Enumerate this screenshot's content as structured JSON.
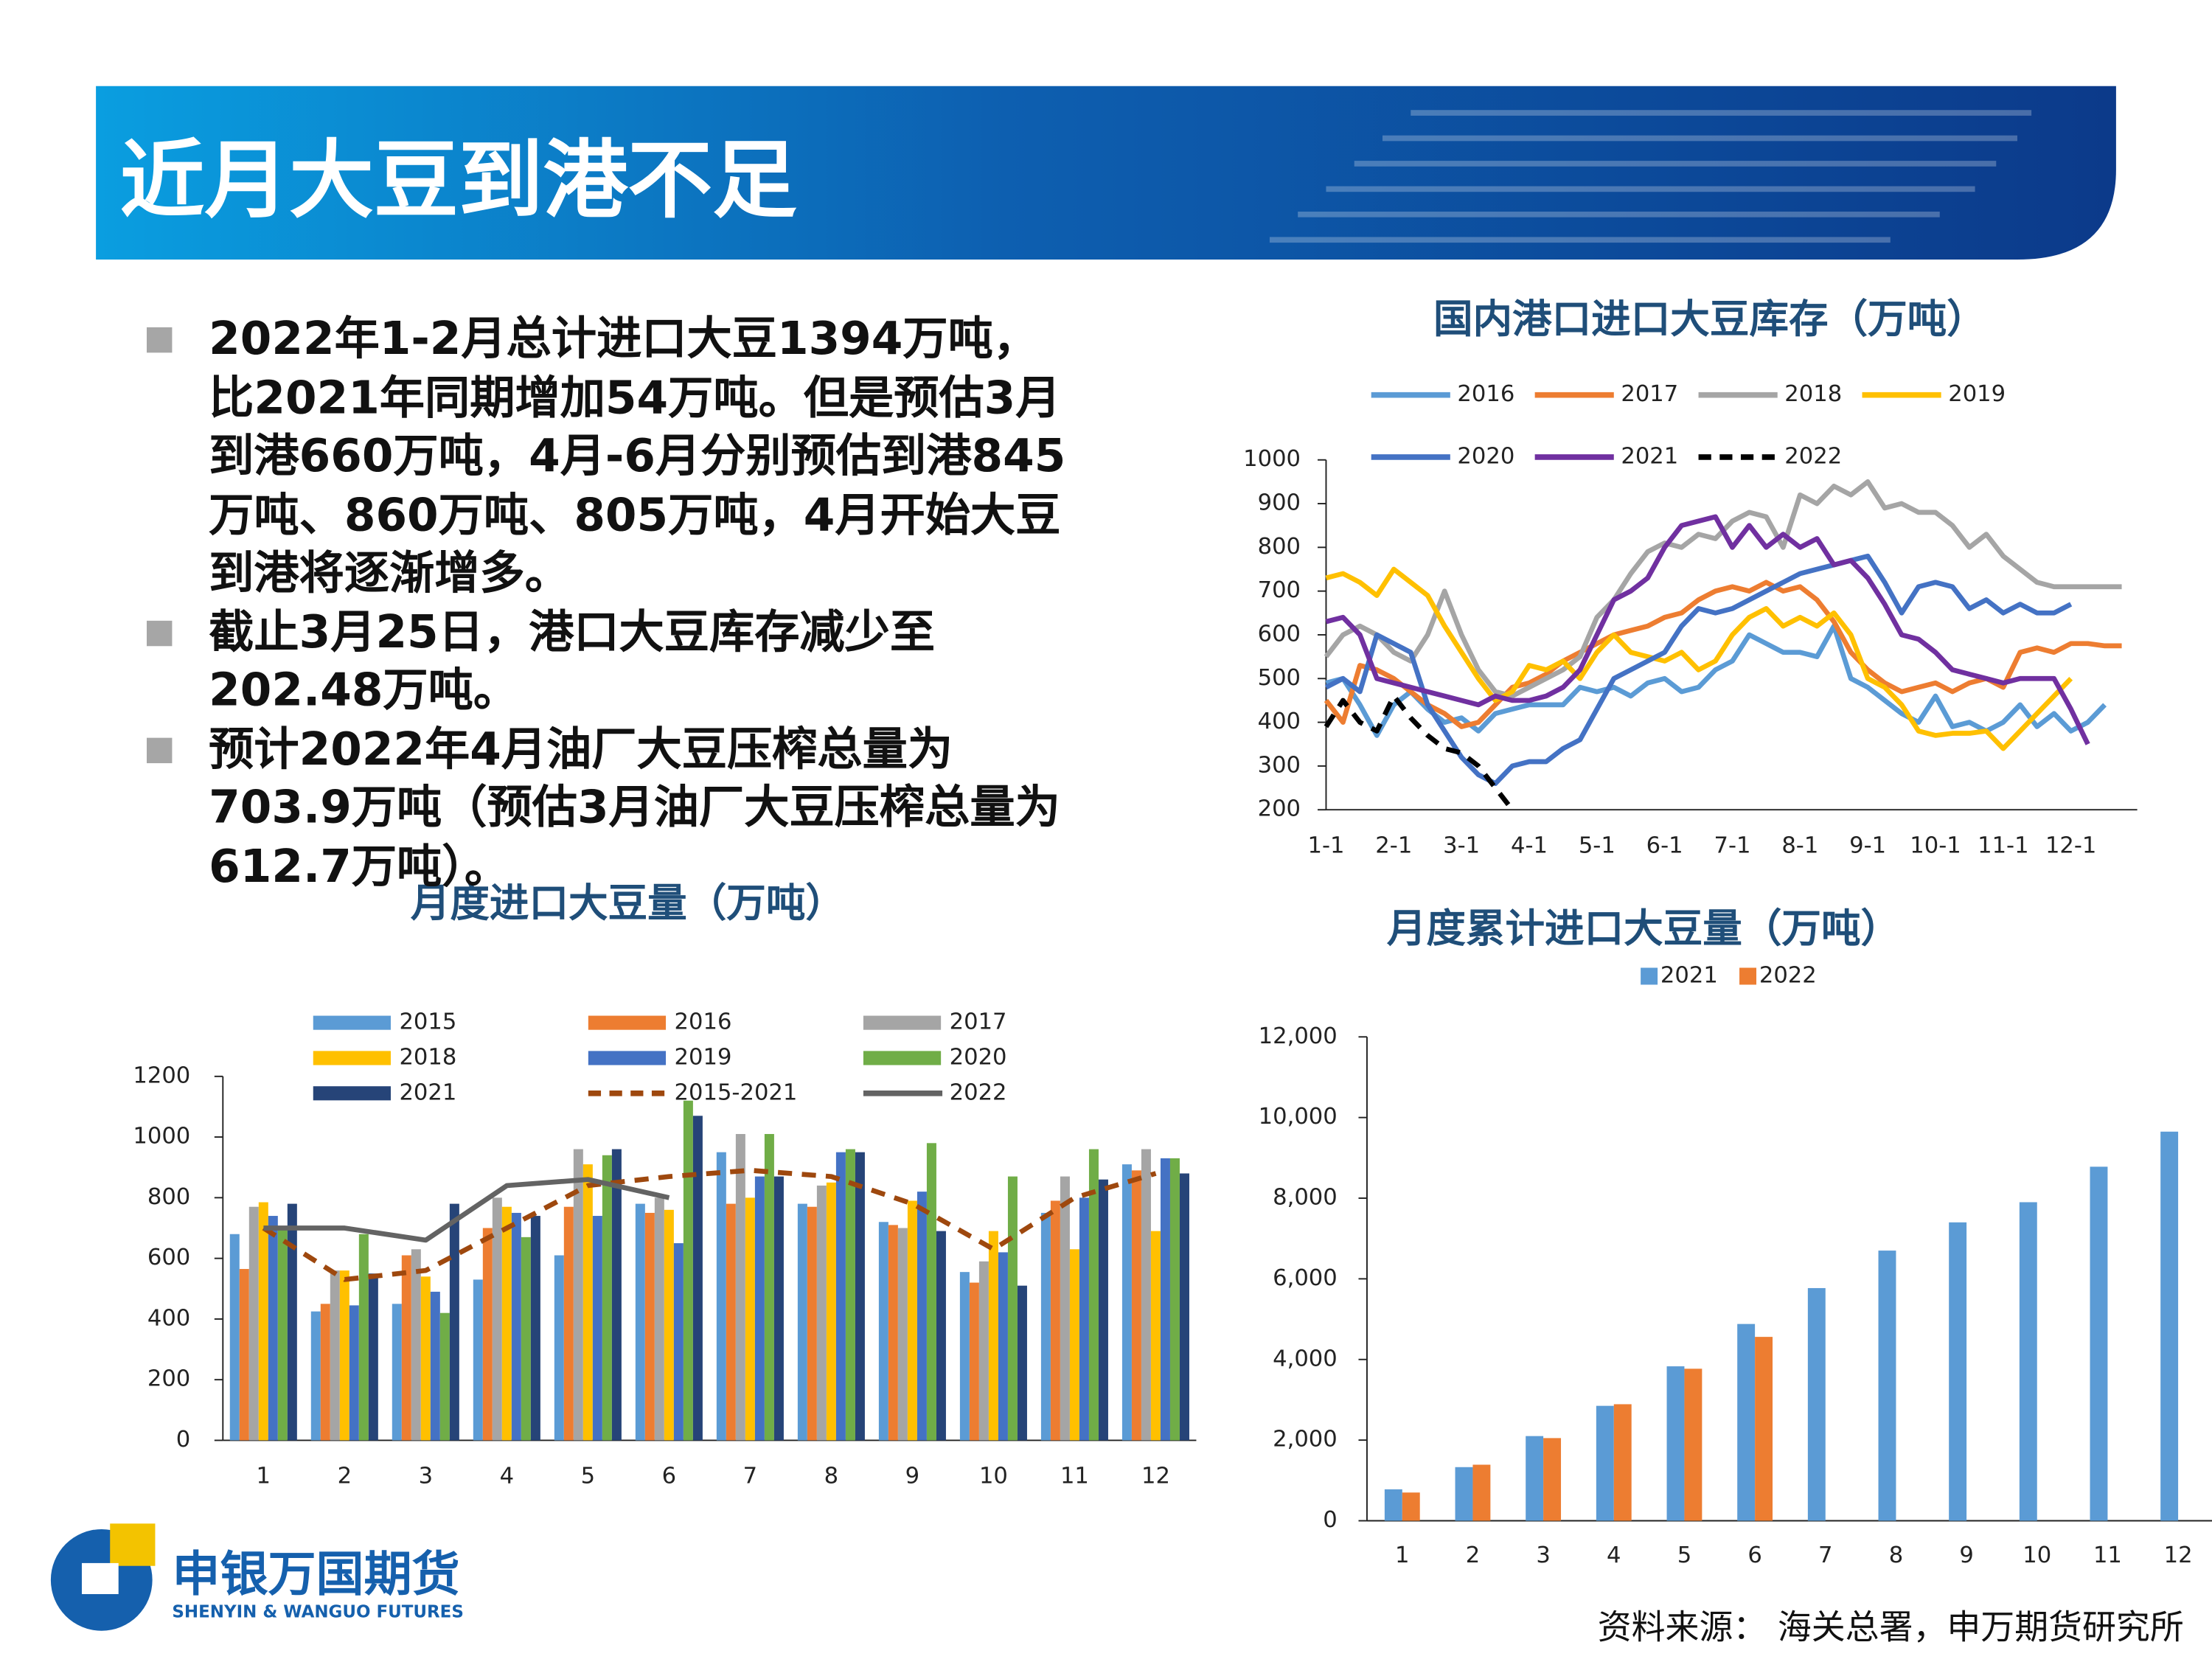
{
  "header": {
    "title": "近月大豆到港不足"
  },
  "bullets": [
    "2022年1-2月总计进口大豆1394万吨，比2021年同期增加54万吨。但是预估3月到港660万吨，4月-6月分别预估到港845万吨、860万吨、805万吨，4月开始大豆到港将逐渐增多。",
    "截止3月25日，港口大豆库存减少至202.48万吨。",
    "预计2022年4月油厂大豆压榨总量为703.9万吨（预估3月油厂大豆压榨总量为612.7万吨）。"
  ],
  "source": "资料来源： 海关总署，申万期货研究所",
  "logo": {
    "name": "申银万国期货",
    "english": "SHENYIN & WANGUO FUTURES"
  },
  "chart_data": [
    {
      "type": "line",
      "title": "国内港口进口大豆库存（万吨）",
      "categories": [
        "1-1",
        null,
        null,
        null,
        "2-1",
        null,
        null,
        null,
        "3-1",
        null,
        null,
        null,
        "4-1",
        null,
        null,
        null,
        "5-1",
        null,
        null,
        null,
        "6-1",
        null,
        null,
        null,
        "7-1",
        null,
        null,
        null,
        "8-1",
        null,
        null,
        null,
        "9-1",
        null,
        null,
        null,
        "10-1",
        null,
        null,
        null,
        "11-1",
        null,
        null,
        null,
        "12-1",
        null,
        null,
        null
      ],
      "ylim": [
        200,
        1000
      ],
      "yticks": [
        200,
        300,
        400,
        500,
        600,
        700,
        800,
        900,
        1000
      ],
      "series": [
        {
          "name": "2016",
          "color": "#5b9bd5",
          "values": [
            490,
            500,
            440,
            370,
            440,
            470,
            430,
            400,
            410,
            380,
            420,
            430,
            440,
            440,
            440,
            480,
            470,
            480,
            460,
            490,
            500,
            470,
            480,
            520,
            540,
            600,
            580,
            560,
            560,
            550,
            620,
            500,
            480,
            450,
            420,
            400,
            460,
            390,
            400,
            380,
            400,
            440,
            390,
            420,
            380,
            400,
            440,
            null
          ]
        },
        {
          "name": "2017",
          "color": "#ed7d31",
          "values": [
            450,
            400,
            530,
            520,
            500,
            470,
            440,
            420,
            390,
            400,
            440,
            480,
            490,
            510,
            540,
            560,
            580,
            600,
            610,
            620,
            640,
            650,
            680,
            700,
            710,
            700,
            720,
            700,
            710,
            680,
            630,
            560,
            520,
            490,
            470,
            480,
            490,
            470,
            490,
            500,
            480,
            560,
            570,
            560,
            580,
            580,
            575,
            575
          ]
        },
        {
          "name": "2018",
          "color": "#a5a5a5",
          "values": [
            550,
            600,
            620,
            600,
            560,
            540,
            600,
            700,
            600,
            520,
            470,
            460,
            480,
            500,
            520,
            550,
            640,
            680,
            740,
            790,
            810,
            800,
            830,
            820,
            860,
            880,
            870,
            800,
            920,
            900,
            940,
            920,
            950,
            890,
            900,
            880,
            880,
            850,
            800,
            830,
            780,
            750,
            720,
            710,
            710,
            710,
            710,
            710
          ]
        },
        {
          "name": "2019",
          "color": "#ffc000",
          "values": [
            730,
            740,
            720,
            690,
            750,
            720,
            690,
            620,
            560,
            500,
            450,
            470,
            530,
            520,
            540,
            500,
            560,
            600,
            560,
            550,
            540,
            560,
            520,
            540,
            600,
            640,
            660,
            620,
            640,
            620,
            650,
            600,
            500,
            480,
            440,
            380,
            370,
            375,
            375,
            380,
            340,
            380,
            420,
            460,
            500,
            null,
            null,
            null
          ]
        },
        {
          "name": "2020",
          "color": "#4472c4",
          "values": [
            480,
            500,
            470,
            600,
            580,
            560,
            440,
            380,
            320,
            280,
            260,
            300,
            310,
            310,
            340,
            360,
            430,
            500,
            520,
            540,
            560,
            620,
            660,
            650,
            660,
            680,
            700,
            720,
            740,
            750,
            760,
            770,
            780,
            720,
            650,
            710,
            720,
            710,
            660,
            680,
            650,
            670,
            650,
            650,
            670,
            null,
            null,
            null
          ]
        },
        {
          "name": "2021",
          "color": "#7030a0",
          "values": [
            630,
            640,
            600,
            500,
            490,
            480,
            470,
            460,
            450,
            440,
            460,
            450,
            450,
            460,
            480,
            520,
            600,
            680,
            700,
            730,
            800,
            850,
            860,
            870,
            800,
            850,
            800,
            830,
            800,
            820,
            760,
            770,
            730,
            670,
            600,
            590,
            560,
            520,
            510,
            500,
            490,
            500,
            500,
            500,
            430,
            350,
            null,
            null
          ]
        },
        {
          "name": "2022",
          "color": "#000000",
          "dashed": true,
          "values": [
            390,
            450,
            400,
            380,
            460,
            410,
            370,
            340,
            330,
            300,
            250,
            200,
            null,
            null,
            null,
            null,
            null,
            null,
            null,
            null,
            null,
            null,
            null,
            null,
            null,
            null,
            null,
            null,
            null,
            null,
            null,
            null,
            null,
            null,
            null,
            null,
            null,
            null,
            null,
            null,
            null,
            null,
            null,
            null,
            null,
            null,
            null,
            null
          ]
        }
      ]
    },
    {
      "type": "bar",
      "title": "月度进口大豆量（万吨）",
      "categories": [
        "1",
        "2",
        "3",
        "4",
        "5",
        "6",
        "7",
        "8",
        "9",
        "10",
        "11",
        "12"
      ],
      "ylim": [
        0,
        1200
      ],
      "yticks": [
        0,
        200,
        400,
        600,
        800,
        1000,
        1200
      ],
      "series": [
        {
          "name": "2015",
          "color": "#5b9bd5",
          "values": [
            680,
            425,
            450,
            530,
            610,
            780,
            950,
            780,
            720,
            555,
            750,
            910
          ]
        },
        {
          "name": "2016",
          "color": "#ed7d31",
          "values": [
            565,
            450,
            610,
            700,
            770,
            750,
            780,
            770,
            710,
            520,
            790,
            890
          ]
        },
        {
          "name": "2017",
          "color": "#a5a5a5",
          "values": [
            770,
            560,
            630,
            800,
            960,
            800,
            1010,
            840,
            700,
            590,
            870,
            960
          ]
        },
        {
          "name": "2018",
          "color": "#ffc000",
          "values": [
            785,
            560,
            540,
            770,
            910,
            760,
            800,
            850,
            790,
            690,
            630,
            690
          ]
        },
        {
          "name": "2019",
          "color": "#4472c4",
          "values": [
            740,
            445,
            490,
            750,
            740,
            650,
            870,
            950,
            820,
            620,
            800,
            930
          ]
        },
        {
          "name": "2020",
          "color": "#70ad47",
          "values": [
            700,
            680,
            420,
            670,
            940,
            1120,
            1010,
            960,
            980,
            870,
            960,
            930
          ]
        },
        {
          "name": "2021",
          "color": "#264478",
          "values": [
            780,
            550,
            780,
            740,
            960,
            1070,
            870,
            950,
            690,
            510,
            860,
            880
          ]
        },
        {
          "name": "2015-2021",
          "color": "#9e480e",
          "type": "line",
          "dashed": true,
          "values": [
            700,
            530,
            560,
            700,
            840,
            870,
            890,
            870,
            780,
            630,
            800,
            880
          ]
        },
        {
          "name": "2022",
          "color": "#636363",
          "type": "line",
          "values": [
            700,
            700,
            660,
            840,
            860,
            800,
            null,
            null,
            null,
            null,
            null,
            null
          ]
        }
      ]
    },
    {
      "type": "bar",
      "title": "月度累计进口大豆量（万吨）",
      "categories": [
        "1",
        "2",
        "3",
        "4",
        "5",
        "6",
        "7",
        "8",
        "9",
        "10",
        "11",
        "12"
      ],
      "ylim": [
        0,
        12000
      ],
      "yticks": [
        0,
        {
          "value": 2000,
          "label": "2,000"
        },
        {
          "value": 4000,
          "label": "4,000"
        },
        {
          "value": 6000,
          "label": "6,000"
        },
        {
          "value": 8000,
          "label": "8,000"
        },
        {
          "value": 10000,
          "label": "10,000"
        },
        {
          "value": 12000,
          "label": "12,000"
        }
      ],
      "series": [
        {
          "name": "2021",
          "color": "#5b9bd5",
          "values": [
            780,
            1330,
            2100,
            2850,
            3830,
            4880,
            5770,
            6700,
            7400,
            7900,
            8780,
            9650
          ]
        },
        {
          "name": "2022",
          "color": "#ed7d31",
          "values": [
            700,
            1390,
            2050,
            2890,
            3770,
            4560,
            null,
            null,
            null,
            null,
            null,
            null
          ]
        }
      ]
    }
  ]
}
